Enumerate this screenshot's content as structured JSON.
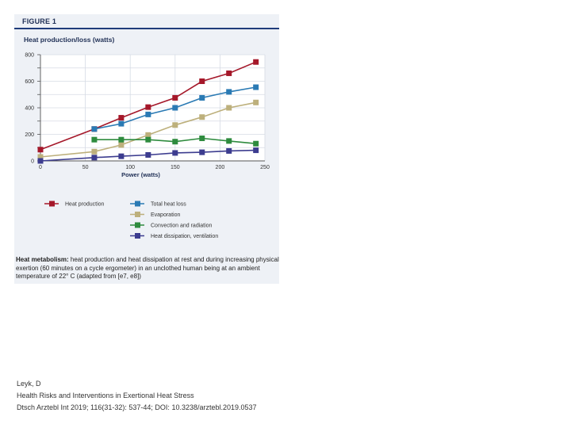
{
  "figure_label": "FIGURE 1",
  "caption": {
    "bold": "Heat metabolism:",
    "text": " heat production and heat dissipation at rest and during increasing physical exertion (60 minutes on a cycle ergometer) in an unclothed human being at an ambient temperature of 22° C (adapted from [e7, e8])"
  },
  "citation": {
    "author": "Leyk, D",
    "title": "Health Risks and Interventions in Exertional Heat Stress",
    "journal": "Dtsch Arztebl Int 2019; 116(31-32): 537-44; DOI: 10.3238/arztebl.2019.0537"
  },
  "chart_data": {
    "type": "line",
    "title": "Heat production/loss (watts)",
    "xlabel": "Power (watts)",
    "ylabel": "",
    "xlim": [
      0,
      250
    ],
    "ylim": [
      0,
      800
    ],
    "xticks": [
      0,
      50,
      100,
      150,
      200,
      250
    ],
    "yticks": [
      0,
      200,
      400,
      600,
      800
    ],
    "grid": true,
    "legend_position": "bottom",
    "series": [
      {
        "name": "Heat production",
        "color": "#a5182a",
        "x": [
          0,
          60,
          90,
          120,
          150,
          180,
          210,
          240
        ],
        "y": [
          85,
          240,
          325,
          405,
          475,
          600,
          660,
          745
        ]
      },
      {
        "name": "Total heat loss",
        "color": "#2a7ab4",
        "x": [
          60,
          90,
          120,
          150,
          180,
          210,
          240
        ],
        "y": [
          240,
          280,
          350,
          400,
          475,
          520,
          555
        ]
      },
      {
        "name": "Evaporation",
        "color": "#bdb07c",
        "x": [
          0,
          60,
          90,
          120,
          150,
          180,
          210,
          240
        ],
        "y": [
          30,
          70,
          120,
          195,
          270,
          330,
          400,
          440
        ]
      },
      {
        "name": "Convection and radiation",
        "color": "#2e8b3e",
        "x": [
          60,
          90,
          120,
          150,
          180,
          210,
          240
        ],
        "y": [
          160,
          160,
          160,
          145,
          170,
          150,
          130
        ]
      },
      {
        "name": "Heat dissipation, ventilation",
        "color": "#3c3c8f",
        "x": [
          0,
          60,
          90,
          120,
          150,
          180,
          210,
          240
        ],
        "y": [
          0,
          25,
          35,
          45,
          60,
          65,
          75,
          80
        ]
      }
    ]
  }
}
